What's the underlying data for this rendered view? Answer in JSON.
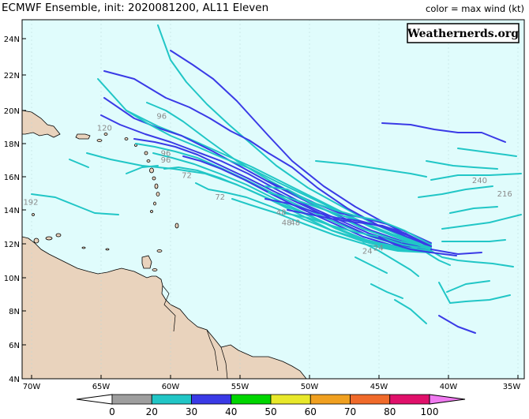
{
  "title": "ECMWF Ensemble, init: 2020081200, AL11 Eleven",
  "legend_note": "color = max wind (kt)",
  "watermark": "Weathernerds.org",
  "colors": {
    "ocean": "#e0fcfc",
    "land": "#e9d3bd",
    "cyan": "#21c6c6",
    "blue": "#3a3ae6"
  },
  "lat_labels": [
    "24N",
    "22N",
    "20N",
    "18N",
    "16N",
    "14N",
    "12N",
    "10N",
    "8N",
    "6N",
    "4N"
  ],
  "lon_labels": [
    "70W",
    "65W",
    "60W",
    "55W",
    "50W",
    "45W",
    "40W",
    "35W"
  ],
  "hour_labels": [
    {
      "text": "96",
      "lon": -61.0,
      "lat": 19.4
    },
    {
      "text": "120",
      "lon": -65.3,
      "lat": 18.7
    },
    {
      "text": "96",
      "lon": -60.7,
      "lat": 17.2
    },
    {
      "text": "96",
      "lon": -60.7,
      "lat": 16.8
    },
    {
      "text": "72",
      "lon": -59.2,
      "lat": 15.9
    },
    {
      "text": "72",
      "lon": -56.8,
      "lat": 14.6
    },
    {
      "text": "192",
      "lon": -70.6,
      "lat": 14.3
    },
    {
      "text": "240",
      "lon": -38.3,
      "lat": 15.6
    },
    {
      "text": "216",
      "lon": -36.5,
      "lat": 14.8
    },
    {
      "text": "48",
      "lon": -52.4,
      "lat": 13.7
    },
    {
      "text": "48",
      "lon": -52.0,
      "lat": 13.1
    },
    {
      "text": "48",
      "lon": -51.4,
      "lat": 13.1
    },
    {
      "text": "24",
      "lon": -46.2,
      "lat": 11.4
    },
    {
      "text": "24",
      "lon": -45.4,
      "lat": 11.6
    }
  ],
  "colorbar": {
    "labels": [
      "0",
      "20",
      "30",
      "40",
      "50",
      "60",
      "70",
      "80",
      "100"
    ],
    "colors": [
      "#9e9e9e",
      "#21c6c6",
      "#3a3ae6",
      "#00d600",
      "#e8e82a",
      "#f0a020",
      "#f06a2a",
      "#e0106a",
      "#f07af0"
    ]
  }
}
